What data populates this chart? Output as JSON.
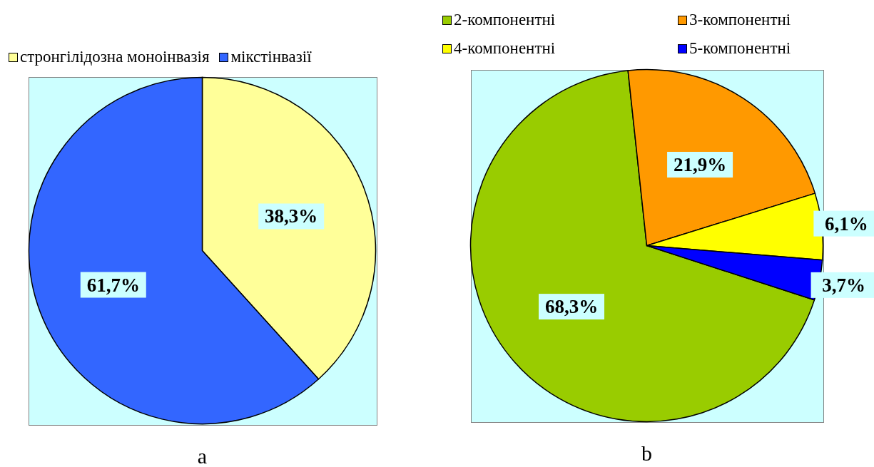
{
  "chart_data": [
    {
      "type": "pie",
      "title": "a",
      "categories": [
        "стронгілідозна моноінвазія",
        "мікстінвазії"
      ],
      "values": [
        38.3,
        61.7
      ],
      "colors": [
        "#ffff99",
        "#3366ff"
      ],
      "value_labels": [
        "38,3%",
        "61,7%"
      ],
      "legend": "top"
    },
    {
      "type": "pie",
      "title": "b",
      "categories": [
        "2-компонентні",
        "3-компонентні",
        "4-компонентні",
        "5-компонентні"
      ],
      "values": [
        68.3,
        21.9,
        6.1,
        3.7
      ],
      "colors": [
        "#99cc00",
        "#ff9900",
        "#ffff00",
        "#0000ff"
      ],
      "value_labels": [
        "68,3%",
        "21,9%",
        "6,1%",
        "3,7%"
      ],
      "legend": "top"
    }
  ]
}
